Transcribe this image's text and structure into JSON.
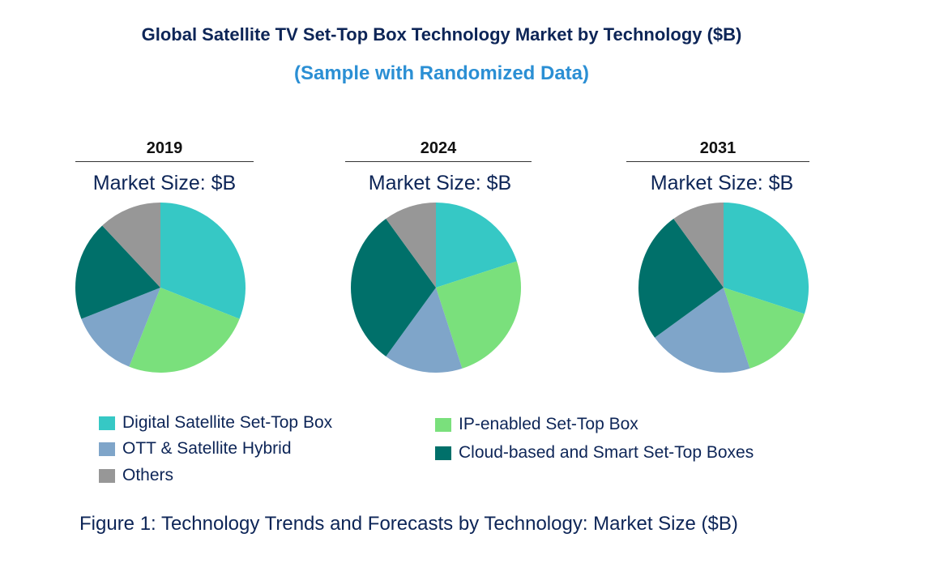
{
  "title": "Global Satellite TV Set-Top Box Technology Market by Technology ($B)",
  "subtitle": "(Sample with Randomized Data)",
  "caption": "Figure 1: Technology Trends and Forecasts by Technology: Market Size ($B)",
  "chart_data": {
    "type": "pie",
    "categories": [
      "Digital Satellite Set-Top Box",
      "IP-enabled Set-Top Box",
      "OTT & Satellite Hybrid",
      "Cloud-based and Smart Set-Top Boxes",
      "Others"
    ],
    "colors": [
      "#36c8c5",
      "#7ae07c",
      "#7fa5c9",
      "#00706a",
      "#979797"
    ],
    "charts": [
      {
        "year": "2019",
        "label": "Market Size: $B",
        "values": [
          31,
          25,
          13,
          19,
          12
        ]
      },
      {
        "year": "2024",
        "label": "Market Size: $B",
        "values": [
          20,
          25,
          15,
          30,
          10
        ]
      },
      {
        "year": "2031",
        "label": "Market Size: $B",
        "values": [
          30,
          15,
          20,
          25,
          10
        ]
      }
    ],
    "legend": "bottom"
  }
}
